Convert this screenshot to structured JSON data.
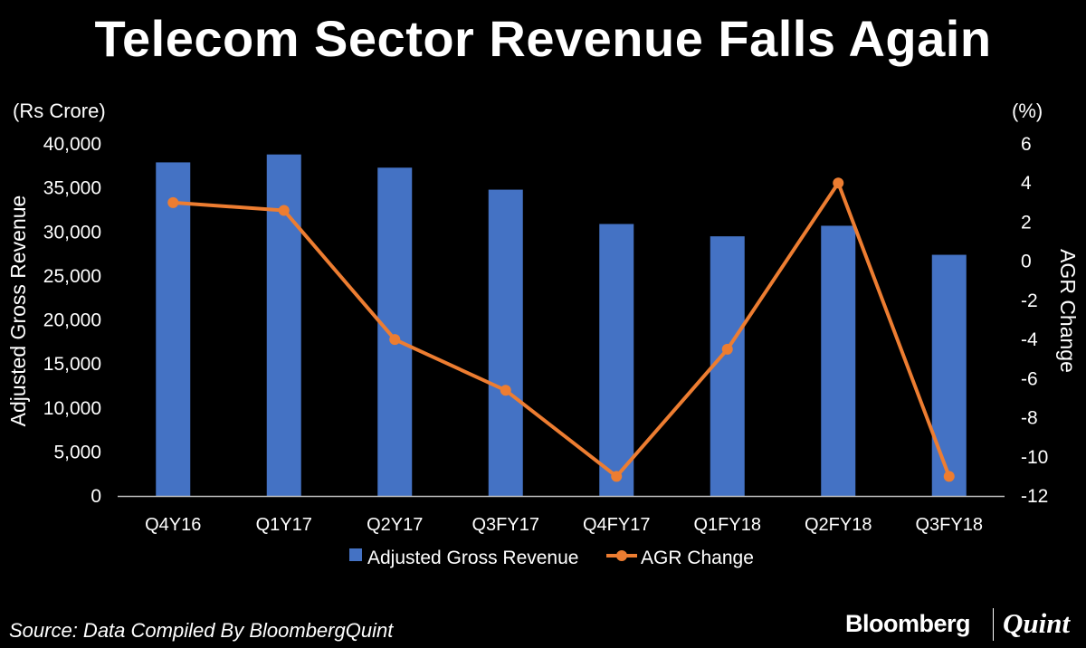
{
  "title": "Telecom Sector Revenue Falls Again",
  "unit_left": "(Rs Crore)",
  "unit_right": "(%)",
  "source": "Source: Data Compiled By BloombergQuint",
  "brand": {
    "primary": "Bloomberg",
    "secondary": "Quint"
  },
  "chart_data": {
    "type": "bar",
    "categories": [
      "Q4Y16",
      "Q1Y17",
      "Q2Y17",
      "Q3FY17",
      "Q4FY17",
      "Q1FY18",
      "Q2FY18",
      "Q3FY18"
    ],
    "series": [
      {
        "name": "Adjusted Gross Revenue",
        "type": "bar",
        "axis": "left",
        "color": "#4472C4",
        "values": [
          37900,
          38800,
          37300,
          34800,
          30900,
          29500,
          30700,
          27400
        ]
      },
      {
        "name": "AGR Change",
        "type": "line",
        "axis": "right",
        "color": "#ED7D31",
        "values": [
          3.0,
          2.6,
          -4.0,
          -6.6,
          -11.0,
          -4.5,
          4.0,
          -11.0
        ]
      }
    ],
    "ylabel": "Adjusted Gross Revenue",
    "ylabel_right": "AGR Change",
    "ylim": [
      0,
      40000
    ],
    "yticks": [
      "0",
      "5,000",
      "10,000",
      "15,000",
      "20,000",
      "25,000",
      "30,000",
      "35,000",
      "40,000"
    ],
    "ylim_right": [
      -12,
      6
    ],
    "yticks_right": [
      "-12",
      "-10",
      "-8",
      "-6",
      "-4",
      "-2",
      "0",
      "2",
      "4",
      "6"
    ],
    "legend": "bottom",
    "grid": false
  }
}
